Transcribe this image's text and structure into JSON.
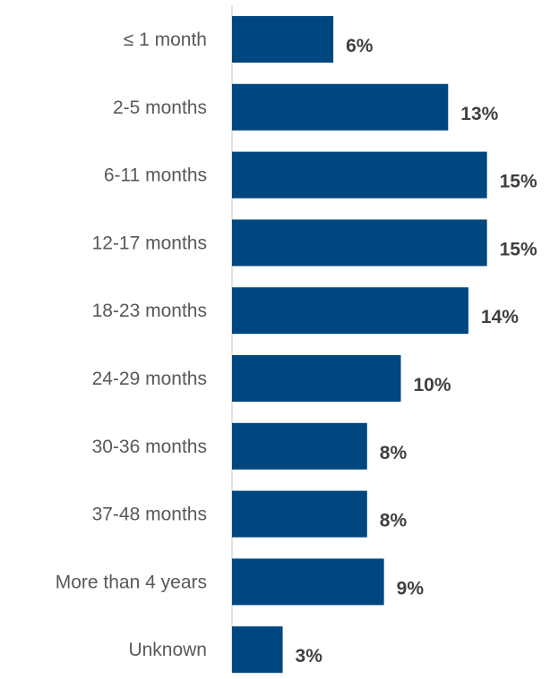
{
  "chart_data": {
    "type": "bar",
    "orientation": "horizontal",
    "categories": [
      "≤ 1 month",
      "2-5 months",
      "6-11 months",
      "12-17 months",
      "18-23 months",
      "24-29 months",
      "30-36 months",
      "37-48 months",
      "More than 4 years",
      "Unknown"
    ],
    "values": [
      6,
      13,
      15,
      15,
      14,
      10,
      8,
      8,
      9,
      3
    ],
    "value_labels": [
      "6%",
      "13%",
      "15%",
      "15%",
      "14%",
      "10%",
      "8%",
      "8%",
      "9%",
      "3%"
    ],
    "bar_values_exact": [
      6.0,
      12.8,
      15.1,
      15.1,
      14.0,
      10.0,
      8.0,
      8.0,
      9.0,
      3.0
    ],
    "title": "",
    "xlabel": "",
    "ylabel": "",
    "grid": false,
    "legend": "none",
    "colors": {
      "bar": "#00467f",
      "axis": "#d9d9d9",
      "category_text": "#595959",
      "value_text": "#404040"
    }
  }
}
